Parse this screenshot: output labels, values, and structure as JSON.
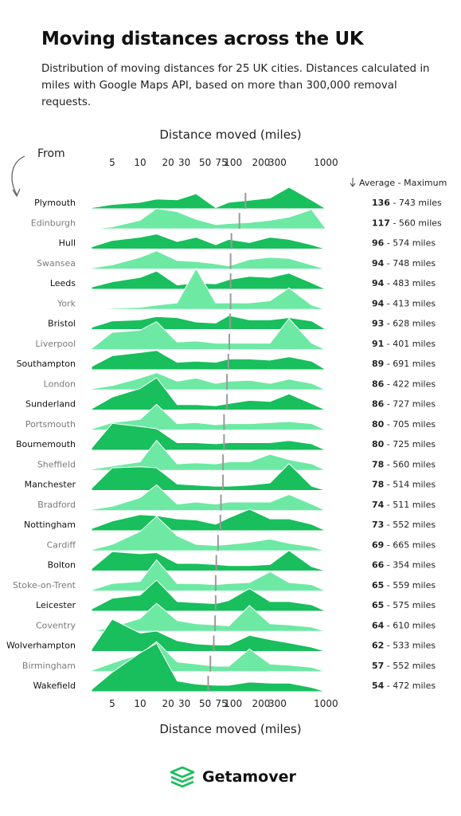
{
  "header": {
    "title": "Moving distances across the UK",
    "subtitle": "Distribution of moving distances for 25 UK cities. Distances calculated in miles with Google Maps API, based on more than 300,000 removal requests."
  },
  "axis": {
    "top_title": "Distance moved (miles)",
    "bottom_title": "Distance moved (miles)"
  },
  "from_label": "From",
  "legend_label": "Average - Maximum",
  "brand": {
    "name": "Getamover"
  },
  "colors": {
    "dark": "#18bf5c",
    "light": "#6ee9a4",
    "dark_text": "#111111",
    "light_text": "#7a7a7a",
    "marker": "#9a9a9a"
  },
  "chart_data": {
    "type": "ridgeline",
    "x_ticks": [
      "5",
      "10",
      "20",
      "30",
      "50",
      "75",
      "100",
      "200",
      "300",
      "1000"
    ],
    "x_scale": "log",
    "unit_suffix": " miles",
    "value_separator": " - ",
    "x_points": [
      3,
      5,
      10,
      15,
      25,
      40,
      65,
      90,
      150,
      250,
      400,
      700,
      1000
    ],
    "series": [
      {
        "name": "Plymouth",
        "average": 136,
        "maximum": 743,
        "density": [
          0.05,
          0.2,
          0.3,
          0.45,
          0.42,
          0.7,
          0.05,
          0.3,
          0.4,
          0.5,
          1,
          0.4,
          0
        ]
      },
      {
        "name": "Edinburgh",
        "average": 117,
        "maximum": 560,
        "density": [
          0,
          0.1,
          0.4,
          0.95,
          0.8,
          0.45,
          0.2,
          0.25,
          0.3,
          0.4,
          0.55,
          0.9,
          0
        ]
      },
      {
        "name": "Hull",
        "average": 96,
        "maximum": 574,
        "density": [
          0.1,
          0.4,
          0.55,
          0.7,
          0.35,
          0.55,
          0.2,
          0.45,
          0.3,
          0.55,
          0.45,
          0.2,
          0
        ]
      },
      {
        "name": "Swansea",
        "average": 94,
        "maximum": 748,
        "density": [
          0.05,
          0.2,
          0.55,
          0.85,
          0.4,
          0.35,
          0.25,
          0.15,
          0.45,
          0.55,
          0.5,
          0.2,
          0
        ]
      },
      {
        "name": "Leeds",
        "average": 94,
        "maximum": 483,
        "density": [
          0.1,
          0.35,
          0.55,
          0.85,
          0.2,
          0.3,
          0.25,
          0.45,
          0.6,
          0.55,
          0.75,
          0.3,
          0
        ]
      },
      {
        "name": "York",
        "average": 94,
        "maximum": 413,
        "density": [
          0,
          0.05,
          0.1,
          0.2,
          0.3,
          1.9,
          0.3,
          0.3,
          0.3,
          0.4,
          1.0,
          0.2,
          0
        ]
      },
      {
        "name": "Bristol",
        "average": 93,
        "maximum": 628,
        "density": [
          0.1,
          0.4,
          0.45,
          0.6,
          0.55,
          0.35,
          0.3,
          0.65,
          0.45,
          0.45,
          0.55,
          0.4,
          0
        ]
      },
      {
        "name": "Liverpool",
        "average": 91,
        "maximum": 401,
        "density": [
          0.05,
          0.8,
          0.9,
          1.3,
          0.35,
          0.4,
          0.3,
          0.3,
          0.3,
          0.3,
          1.45,
          0.3,
          0
        ]
      },
      {
        "name": "Southampton",
        "average": 89,
        "maximum": 691,
        "density": [
          0.15,
          0.65,
          0.8,
          0.9,
          0.35,
          0.4,
          0.35,
          0.5,
          0.5,
          0.45,
          0.6,
          0.4,
          0
        ]
      },
      {
        "name": "London",
        "average": 86,
        "maximum": 422,
        "density": [
          0.05,
          0.2,
          0.55,
          0.8,
          0.4,
          0.55,
          0.3,
          0.4,
          0.45,
          0.3,
          0.5,
          0.3,
          0
        ]
      },
      {
        "name": "Sunderland",
        "average": 86,
        "maximum": 727,
        "density": [
          0.05,
          0.6,
          1.0,
          1.5,
          0.25,
          0.25,
          0.2,
          0.3,
          0.45,
          0.4,
          0.75,
          0.3,
          0
        ]
      },
      {
        "name": "Portsmouth",
        "average": 80,
        "maximum": 705,
        "density": [
          0.05,
          0.35,
          0.5,
          1.2,
          0.3,
          0.35,
          0.25,
          0.3,
          0.3,
          0.35,
          0.4,
          0.3,
          0
        ]
      },
      {
        "name": "Bournemouth",
        "average": 80,
        "maximum": 725,
        "density": [
          0.1,
          1.25,
          1.1,
          1.0,
          0.35,
          0.35,
          0.3,
          0.35,
          0.35,
          0.35,
          0.45,
          0.3,
          0
        ]
      },
      {
        "name": "Sheffield",
        "average": 78,
        "maximum": 560,
        "density": [
          0.05,
          0.2,
          0.4,
          1.4,
          0.3,
          0.35,
          0.3,
          0.4,
          0.4,
          0.75,
          0.5,
          0.3,
          0
        ]
      },
      {
        "name": "Manchester",
        "average": 78,
        "maximum": 514,
        "density": [
          0.1,
          1.05,
          1.1,
          1.05,
          0.3,
          0.25,
          0.2,
          0.2,
          0.25,
          0.35,
          1.25,
          0.2,
          0
        ]
      },
      {
        "name": "Bradford",
        "average": 74,
        "maximum": 511,
        "density": [
          0.05,
          0.2,
          0.6,
          1.2,
          0.3,
          0.4,
          0.3,
          0.4,
          0.4,
          0.4,
          0.75,
          0.3,
          0
        ]
      },
      {
        "name": "Nottingham",
        "average": 73,
        "maximum": 552,
        "density": [
          0.1,
          0.45,
          0.75,
          0.7,
          0.55,
          0.5,
          0.3,
          0.6,
          1.0,
          0.55,
          0.55,
          0.3,
          0
        ]
      },
      {
        "name": "Cardiff",
        "average": 69,
        "maximum": 665,
        "density": [
          0.05,
          0.3,
          0.9,
          1.6,
          0.7,
          0.3,
          0.25,
          0.3,
          0.4,
          0.55,
          0.35,
          0.2,
          0
        ]
      },
      {
        "name": "Bolton",
        "average": 66,
        "maximum": 354,
        "density": [
          0.1,
          0.9,
          0.8,
          0.85,
          0.35,
          0.35,
          0.3,
          0.25,
          0.25,
          0.3,
          0.95,
          0.2,
          0
        ]
      },
      {
        "name": "Stoke-on-Trent",
        "average": 65,
        "maximum": 559,
        "density": [
          0.05,
          0.35,
          0.45,
          1.45,
          0.35,
          0.35,
          0.3,
          0.35,
          0.4,
          0.9,
          0.4,
          0.3,
          0
        ]
      },
      {
        "name": "Leicester",
        "average": 65,
        "maximum": 575,
        "density": [
          0.1,
          0.6,
          0.75,
          1.45,
          0.45,
          0.4,
          0.35,
          0.5,
          1.05,
          0.45,
          0.45,
          0.3,
          0
        ]
      },
      {
        "name": "Coventry",
        "average": 64,
        "maximum": 610,
        "density": [
          0,
          0.2,
          0.6,
          1.3,
          0.5,
          0.35,
          0.3,
          0.25,
          1.2,
          0.35,
          0.3,
          0.2,
          0
        ]
      },
      {
        "name": "Wolverhampton",
        "average": 62,
        "maximum": 533,
        "density": [
          0.1,
          1.5,
          0.85,
          0.95,
          0.5,
          0.35,
          0.3,
          0.3,
          0.75,
          0.55,
          0.4,
          0.2,
          0
        ]
      },
      {
        "name": "Birmingham",
        "average": 57,
        "maximum": 552,
        "density": [
          0.05,
          0.4,
          0.8,
          1.4,
          0.45,
          0.35,
          0.25,
          0.25,
          1.05,
          0.35,
          0.3,
          0.2,
          0
        ]
      },
      {
        "name": "Wakefield",
        "average": 54,
        "maximum": 472,
        "density": [
          0.1,
          0.9,
          1.8,
          2.25,
          0.5,
          0.35,
          0.3,
          0.3,
          0.45,
          0.4,
          0.4,
          0.2,
          0
        ]
      }
    ]
  }
}
